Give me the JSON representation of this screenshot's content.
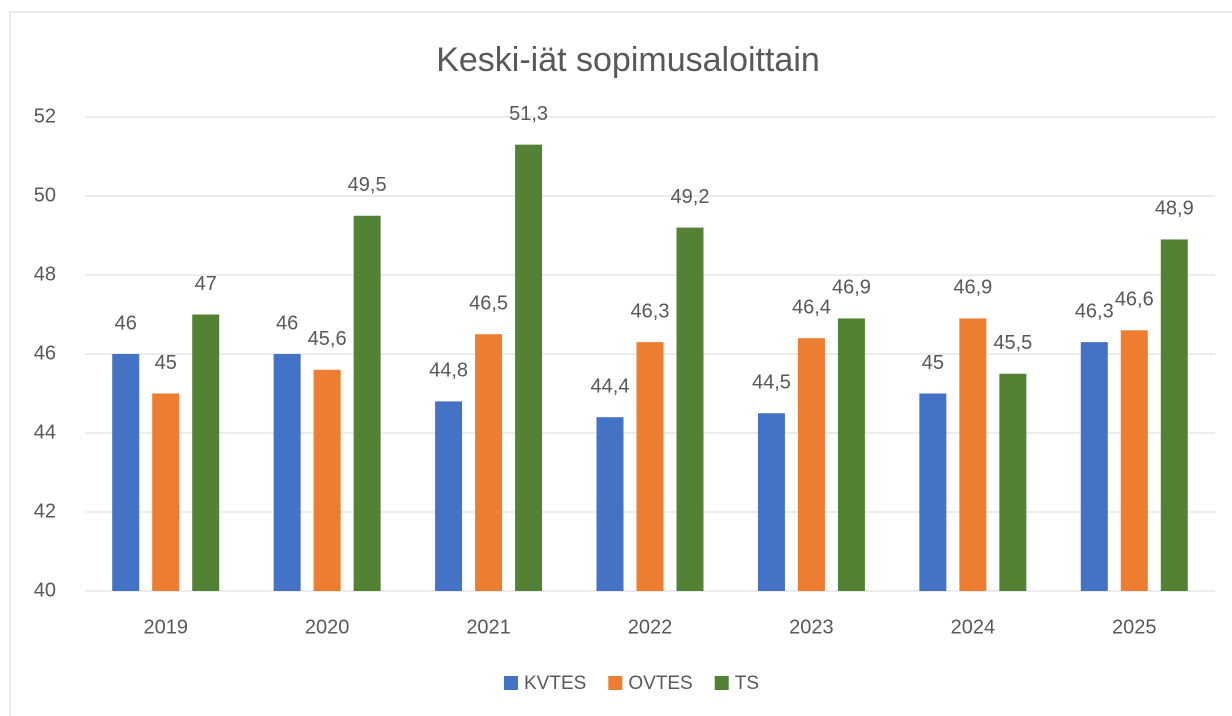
{
  "chart_data": {
    "type": "bar",
    "title": "Keski-iät sopimusaloittain",
    "categories": [
      "2019",
      "2020",
      "2021",
      "2022",
      "2023",
      "2024",
      "2025"
    ],
    "series": [
      {
        "name": "KVTES",
        "color": "#4472c4",
        "values": [
          46,
          46,
          44.8,
          44.4,
          44.5,
          45,
          46.3
        ],
        "value_labels": [
          "46",
          "46",
          "44,8",
          "44,4",
          "44,5",
          "45",
          "46,3"
        ]
      },
      {
        "name": "OVTES",
        "color": "#ed7d31",
        "values": [
          45,
          45.6,
          46.5,
          46.3,
          46.4,
          46.9,
          46.6
        ],
        "value_labels": [
          "45",
          "45,6",
          "46,5",
          "46,3",
          "46,4",
          "46,9",
          "46,6"
        ]
      },
      {
        "name": "TS",
        "color": "#548235",
        "values": [
          47,
          49.5,
          51.3,
          49.2,
          46.9,
          45.5,
          48.9
        ],
        "value_labels": [
          "47",
          "49,5",
          "51,3",
          "49,2",
          "46,9",
          "45,5",
          "48,9"
        ]
      }
    ],
    "ylim": [
      40,
      52
    ],
    "yticks": [
      40,
      42,
      44,
      46,
      48,
      50,
      52
    ],
    "grid": true,
    "legend": "bottom"
  }
}
